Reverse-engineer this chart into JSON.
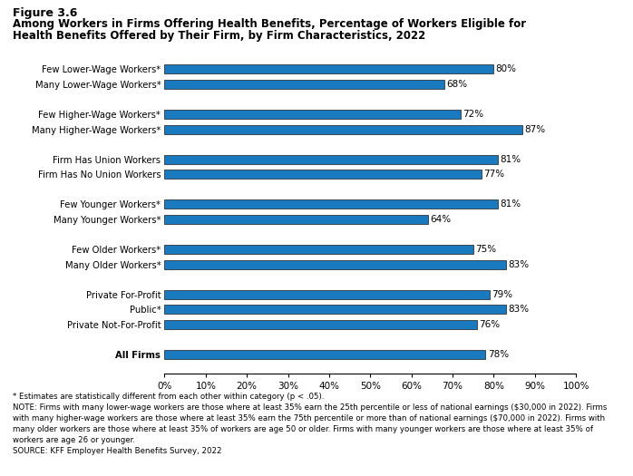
{
  "categories": [
    "Few Lower-Wage Workers*",
    "Many Lower-Wage Workers*",
    "",
    "Few Higher-Wage Workers*",
    "Many Higher-Wage Workers*",
    " ",
    "Firm Has Union Workers",
    "Firm Has No Union Workers",
    "  ",
    "Few Younger Workers*",
    "Many Younger Workers*",
    "   ",
    "Few Older Workers*",
    "Many Older Workers*",
    "    ",
    "Private For-Profit",
    "Public*",
    "Private Not-For-Profit",
    "     ",
    "All Firms"
  ],
  "values": [
    80,
    68,
    0,
    72,
    87,
    0,
    81,
    77,
    0,
    81,
    64,
    0,
    75,
    83,
    0,
    79,
    83,
    76,
    0,
    78
  ],
  "bar_color": "#1a7abf",
  "bar_edge_color": "#1a1a1a",
  "figure_label": "Figure 3.6",
  "title_line1": "Among Workers in Firms Offering Health Benefits, Percentage of Workers Eligible for",
  "title_line2": "Health Benefits Offered by Their Firm, by Firm Characteristics, 2022",
  "xlim": [
    0,
    100
  ],
  "xtick_values": [
    0,
    10,
    20,
    30,
    40,
    50,
    60,
    70,
    80,
    90,
    100
  ],
  "xtick_labels": [
    "0%",
    "10%",
    "20%",
    "30%",
    "40%",
    "50%",
    "60%",
    "70%",
    "80%",
    "90%",
    "100%"
  ],
  "footnote1": "* Estimates are statistically different from each other within category (p < .05).",
  "footnote2": "NOTE: Firms with many lower-wage workers are those where at least 35% earn the 25th percentile or less of national earnings ($30,000 in 2022). Firms",
  "footnote3": "with many higher-wage workers are those where at least 35% earn the 75th percentile or more than of national earnings ($70,000 in 2022). Firms with",
  "footnote4": "many older workers are those where at least 35% of workers are age 50 or older. Firms with many younger workers are those where at least 35% of",
  "footnote5": "workers are age 26 or younger.",
  "footnote6": "SOURCE: KFF Employer Health Benefits Survey, 2022",
  "background_color": "#ffffff"
}
